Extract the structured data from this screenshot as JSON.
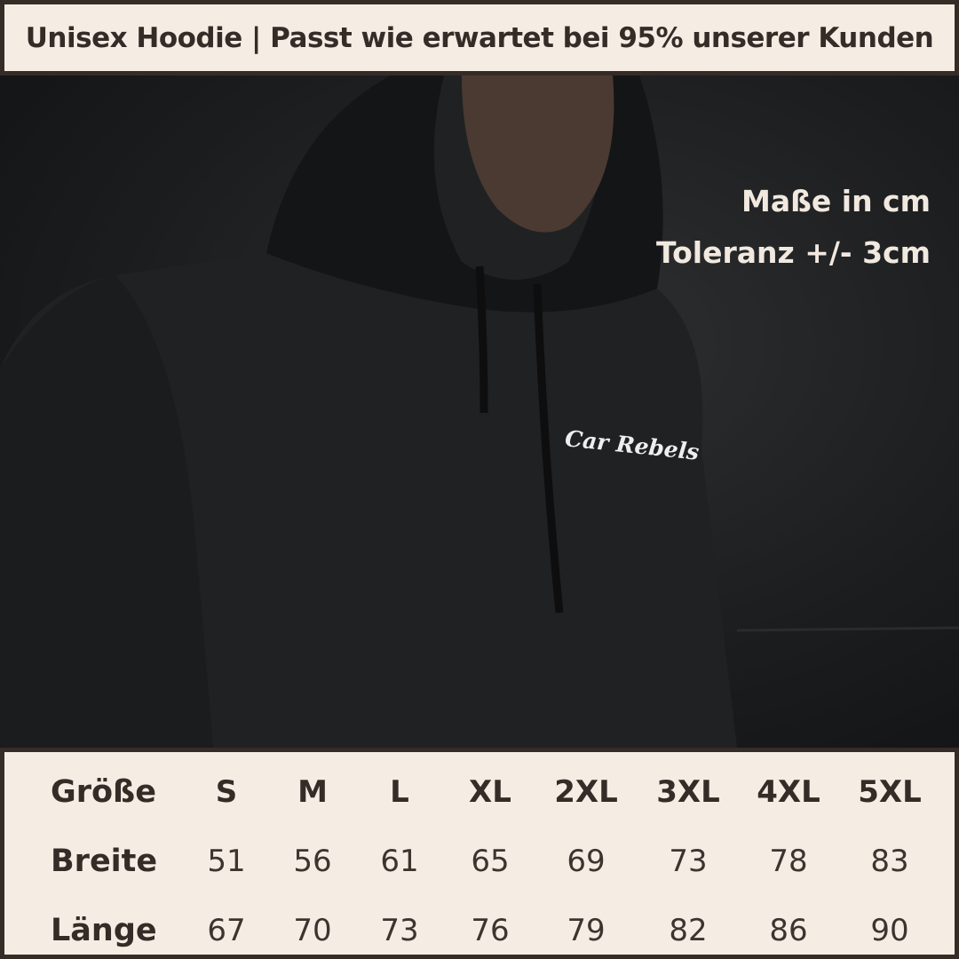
{
  "header": {
    "title": "Unisex Hoodie | Passt wie erwartet bei 95% unserer Kunden"
  },
  "photo": {
    "logo_text": "Car Rebels",
    "notes": [
      "Maße in cm",
      "Toleranz +/- 3cm"
    ]
  },
  "size_table": {
    "row_labels": [
      "Größe",
      "Breite",
      "Länge"
    ],
    "sizes": [
      "S",
      "M",
      "L",
      "XL",
      "2XL",
      "3XL",
      "4XL",
      "5XL"
    ],
    "breite": [
      "51",
      "56",
      "61",
      "65",
      "69",
      "73",
      "78",
      "83"
    ],
    "laenge": [
      "67",
      "70",
      "73",
      "76",
      "79",
      "82",
      "86",
      "90"
    ]
  },
  "colors": {
    "cream": "#f5ede3",
    "dark_brown": "#352c28"
  }
}
